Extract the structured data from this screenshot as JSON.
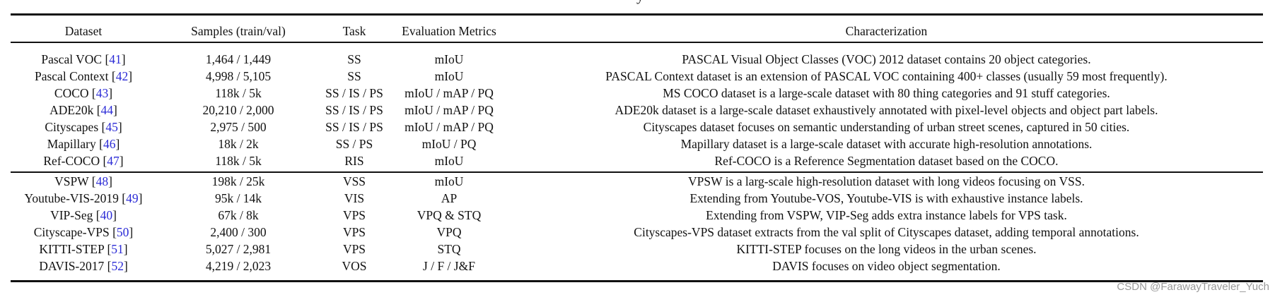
{
  "caption_fragment": {
    "left": "y",
    "right": "g"
  },
  "columns": [
    "Dataset",
    "Samples (train/val)",
    "Task",
    "Evaluation Metrics",
    "Characterization"
  ],
  "image_datasets": [
    {
      "name": "Pascal VOC",
      "cite": "41",
      "samples": "1,464 / 1,449",
      "task": "SS",
      "metrics": "mIoU",
      "desc": "PASCAL Visual Object Classes (VOC) 2012 dataset contains 20 object categories."
    },
    {
      "name": "Pascal Context",
      "cite": "42",
      "samples": "4,998 / 5,105",
      "task": "SS",
      "metrics": "mIoU",
      "desc": "PASCAL Context dataset is an extension of PASCAL VOC containing 400+ classes (usually 59 most frequently)."
    },
    {
      "name": "COCO",
      "cite": "43",
      "samples": "118k / 5k",
      "task": "SS / IS / PS",
      "metrics": "mIoU / mAP / PQ",
      "desc": "MS COCO dataset is a large-scale dataset with 80 thing categories and 91 stuff categories."
    },
    {
      "name": "ADE20k",
      "cite": "44",
      "samples": "20,210 / 2,000",
      "task": "SS / IS / PS",
      "metrics": "mIoU / mAP / PQ",
      "desc": "ADE20k dataset is a large-scale dataset exhaustively annotated with pixel-level objects and object part labels."
    },
    {
      "name": "Cityscapes",
      "cite": "45",
      "samples": "2,975 / 500",
      "task": "SS / IS / PS",
      "metrics": "mIoU / mAP / PQ",
      "desc": "Cityscapes dataset focuses on semantic understanding of urban street scenes, captured in 50 cities."
    },
    {
      "name": "Mapillary",
      "cite": "46",
      "samples": "18k / 2k",
      "task": "SS / PS",
      "metrics": "mIoU / PQ",
      "desc": "Mapillary dataset is a large-scale dataset with accurate high-resolution annotations."
    },
    {
      "name": "Ref-COCO",
      "cite": "47",
      "samples": "118k / 5k",
      "task": "RIS",
      "metrics": "mIoU",
      "desc": "Ref-COCO is a Reference Segmentation dataset based on the COCO."
    }
  ],
  "video_datasets": [
    {
      "name": "VSPW",
      "cite": "48",
      "samples": "198k / 25k",
      "task": "VSS",
      "metrics": "mIoU",
      "desc": "VPSW is a larg-scale high-resolution dataset with long videos focusing on VSS."
    },
    {
      "name": "Youtube-VIS-2019",
      "cite": "49",
      "samples": "95k / 14k",
      "task": "VIS",
      "metrics": "AP",
      "desc": "Extending from Youtube-VOS, Youtube-VIS is with exhaustive instance labels."
    },
    {
      "name": "VIP-Seg",
      "cite": "40",
      "samples": "67k / 8k",
      "task": "VPS",
      "metrics": "VPQ & STQ",
      "desc": "Extending from VSPW, VIP-Seg adds extra instance labels for VPS task."
    },
    {
      "name": "Cityscape-VPS",
      "cite": "50",
      "samples": "2,400 / 300",
      "task": "VPS",
      "metrics": "VPQ",
      "desc": "Cityscapes-VPS dataset extracts from the val split of Cityscapes dataset, adding temporal annotations."
    },
    {
      "name": "KITTI-STEP",
      "cite": "51",
      "samples": "5,027 / 2,981",
      "task": "VPS",
      "metrics": "STQ",
      "desc": "KITTI-STEP focuses on the long videos in the urban scenes."
    },
    {
      "name": "DAVIS-2017",
      "cite": "52",
      "samples": "4,219 / 2,023",
      "task": "VOS",
      "metrics": "J / F / J&F",
      "desc": "DAVIS focuses on video object segmentation."
    }
  ],
  "watermark": "CSDN @FarawayTraveler_Yuch"
}
